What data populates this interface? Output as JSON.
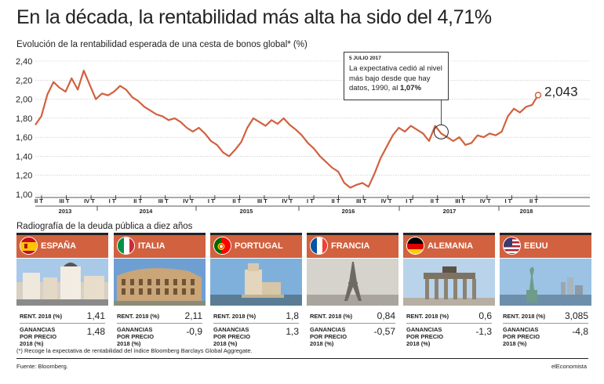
{
  "title": "En la década, la rentabilidad más alta ha sido del 4,71%",
  "subtitle": "Evolución de la rentabilidad esperada de una cesta de bonos global* (%)",
  "chart_data": {
    "type": "line",
    "y_ticks": [
      "2,40",
      "2,20",
      "2,00",
      "1,80",
      "1,60",
      "1,40",
      "1,20",
      "1,00"
    ],
    "ylim": [
      1.0,
      2.4
    ],
    "quarter_ticks": [
      "II T",
      "III T",
      "IV T",
      "I T",
      "II T",
      "III T",
      "IV T",
      "I T",
      "II T",
      "III T",
      "IV T",
      "I T",
      "II T",
      "III T",
      "IV T",
      "I T",
      "II T",
      "III T",
      "IV T",
      "I T",
      "II T"
    ],
    "years": [
      "2013",
      "2014",
      "2015",
      "2016",
      "2017",
      "2018"
    ],
    "series": [
      {
        "values": [
          1.73,
          1.82,
          2.05,
          2.18,
          2.12,
          2.08,
          2.22,
          2.1,
          2.3,
          2.15,
          2.0,
          2.06,
          2.04,
          2.08,
          2.14,
          2.1,
          2.02,
          1.98,
          1.92,
          1.88,
          1.84,
          1.82,
          1.78,
          1.8,
          1.76,
          1.7,
          1.66,
          1.7,
          1.64,
          1.56,
          1.52,
          1.44,
          1.4,
          1.47,
          1.55,
          1.7,
          1.8,
          1.76,
          1.72,
          1.78,
          1.74,
          1.8,
          1.73,
          1.68,
          1.62,
          1.54,
          1.48,
          1.4,
          1.34,
          1.28,
          1.24,
          1.12,
          1.07,
          1.1,
          1.12,
          1.08,
          1.22,
          1.38,
          1.5,
          1.62,
          1.7,
          1.66,
          1.72,
          1.68,
          1.64,
          1.56,
          1.72,
          1.64,
          1.6,
          1.56,
          1.6,
          1.52,
          1.54,
          1.62,
          1.6,
          1.64,
          1.62,
          1.66,
          1.82,
          1.9,
          1.86,
          1.92,
          1.94,
          2.043
        ]
      }
    ],
    "last_value_label": "2,043",
    "annotation": {
      "date": "5 JULIO 2017",
      "text": "La expectativa cedió al nivel más bajo desde que hay datos, 1990, al ",
      "bold": "1,07%"
    }
  },
  "radiography_title": "Radiografía de la deuda pública a diez años",
  "labels": {
    "rent": "RENT. 2018 (%)",
    "gan": "GANANCIAS POR PRECIO 2018 (%)"
  },
  "countries": [
    {
      "name": "ESPAÑA",
      "rent": "1,41",
      "gan": "1,48"
    },
    {
      "name": "ITALIA",
      "rent": "2,11",
      "gan": "-0,9"
    },
    {
      "name": "PORTUGAL",
      "rent": "1,8",
      "gan": "1,3"
    },
    {
      "name": "FRANCIA",
      "rent": "0,84",
      "gan": "-0,57"
    },
    {
      "name": "ALEMANIA",
      "rent": "0,6",
      "gan": "-1,3"
    },
    {
      "name": "EEUU",
      "rent": "3,085",
      "gan": "-4,8"
    }
  ],
  "footnote": "(*) Recoge la expectativa de rentabilidad del índice Bloomberg Barclays Global Aggregate.",
  "source": "Fuente: Bloomberg.",
  "brand": "elEconomista",
  "colors": {
    "accent": "#d1613f",
    "line": "#d1613f"
  }
}
